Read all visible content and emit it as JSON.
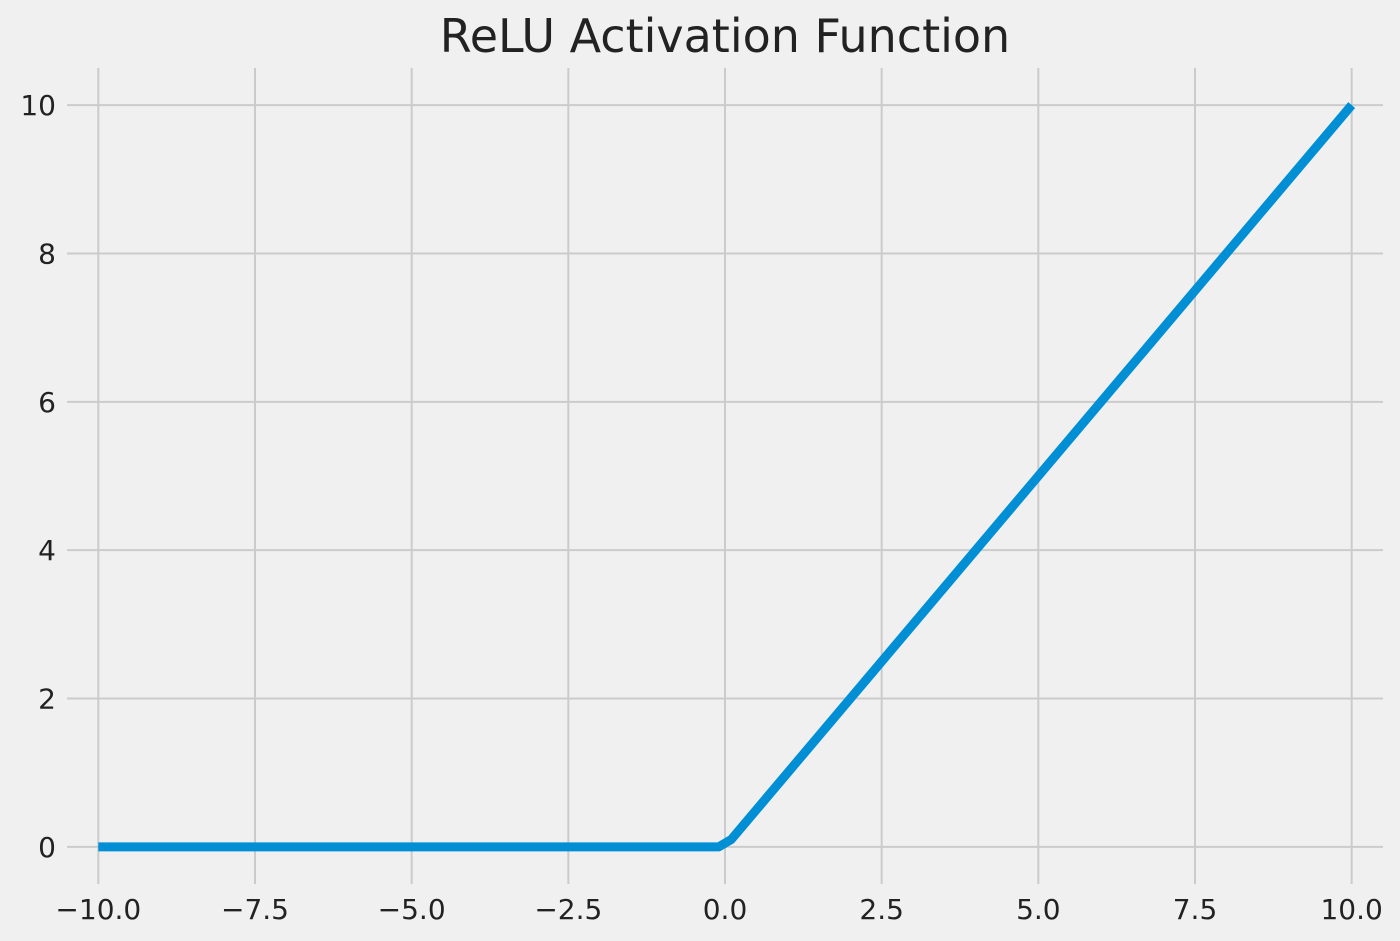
{
  "chart_data": {
    "type": "line",
    "title": "ReLU Activation Function",
    "xlabel": "",
    "ylabel": "",
    "xlim": [
      -10.5,
      10.5
    ],
    "ylim": [
      -0.5,
      10.5
    ],
    "grid": true,
    "x_ticks": [
      -10.0,
      -7.5,
      -5.0,
      -2.5,
      0.0,
      2.5,
      5.0,
      7.5,
      10.0
    ],
    "x_tick_labels": [
      "−10.0",
      "−7.5",
      "−5.0",
      "−2.5",
      "0.0",
      "2.5",
      "5.0",
      "7.5",
      "10.0"
    ],
    "y_ticks": [
      0,
      2,
      4,
      6,
      8,
      10
    ],
    "y_tick_labels": [
      "0",
      "2",
      "4",
      "6",
      "8",
      "10"
    ],
    "series": [
      {
        "color": "#008fd5",
        "x": [
          -10.0,
          -0.1,
          0.1,
          10.0
        ],
        "y": [
          0.0,
          0.0,
          0.1,
          10.0
        ]
      }
    ]
  }
}
